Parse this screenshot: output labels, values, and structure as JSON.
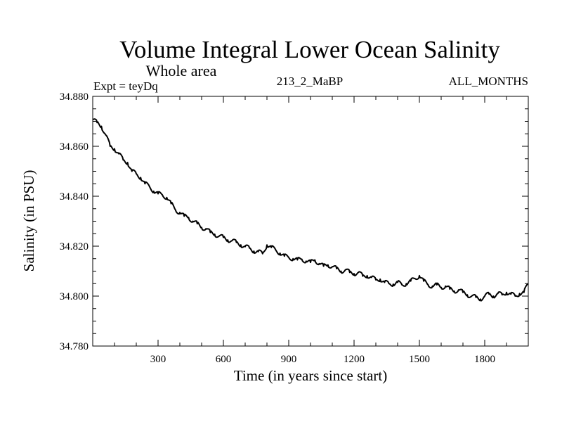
{
  "chart_data": {
    "type": "line",
    "title": "Volume Integral Lower Ocean Salinity",
    "subtitle": "Whole area",
    "annotations": {
      "left": "Expt = teyDq",
      "center": "213_2_MaBP",
      "right": "ALL_MONTHS"
    },
    "xlabel": "Time (in years since start)",
    "ylabel": "Salinity (in PSU)",
    "xlim": [
      0,
      2000
    ],
    "ylim": [
      34.78,
      34.88
    ],
    "x_major_ticks": [
      300,
      600,
      900,
      1200,
      1500,
      1800
    ],
    "x_tick_labels": [
      "300",
      "600",
      "900",
      "1200",
      "1500",
      "1800"
    ],
    "x_minor_step": 100,
    "y_major_ticks": [
      34.78,
      34.8,
      34.82,
      34.84,
      34.86,
      34.88
    ],
    "y_tick_labels": [
      "34.780",
      "34.800",
      "34.820",
      "34.840",
      "34.860",
      "34.880"
    ],
    "y_minor_step": 0.005,
    "grid": false,
    "legend": "none",
    "series": [
      {
        "name": "Salinity",
        "color": "#000000",
        "x": [
          0,
          20,
          40,
          60,
          80,
          100,
          120,
          140,
          160,
          180,
          200,
          220,
          240,
          260,
          280,
          300,
          320,
          340,
          360,
          380,
          400,
          420,
          440,
          460,
          480,
          500,
          520,
          540,
          560,
          580,
          600,
          620,
          640,
          660,
          680,
          700,
          720,
          740,
          760,
          780,
          800,
          820,
          840,
          860,
          880,
          900,
          920,
          940,
          960,
          980,
          1000,
          1020,
          1040,
          1060,
          1080,
          1100,
          1120,
          1140,
          1160,
          1180,
          1200,
          1220,
          1240,
          1260,
          1280,
          1300,
          1320,
          1340,
          1360,
          1380,
          1400,
          1420,
          1440,
          1460,
          1480,
          1500,
          1520,
          1540,
          1560,
          1580,
          1600,
          1620,
          1640,
          1660,
          1680,
          1700,
          1720,
          1740,
          1760,
          1780,
          1800,
          1820,
          1840,
          1860,
          1880,
          1900,
          1920,
          1940,
          1960,
          1980,
          2000
        ],
        "values": [
          34.8707,
          34.8695,
          34.868,
          34.8645,
          34.86,
          34.859,
          34.857,
          34.8545,
          34.8535,
          34.85,
          34.849,
          34.8475,
          34.845,
          34.844,
          34.842,
          34.841,
          34.8405,
          34.8395,
          34.837,
          34.8345,
          34.8335,
          34.832,
          34.8315,
          34.83,
          34.829,
          34.8275,
          34.827,
          34.8255,
          34.8248,
          34.824,
          34.8235,
          34.8225,
          34.8222,
          34.8215,
          34.8205,
          34.8198,
          34.8192,
          34.818,
          34.8178,
          34.817,
          34.8205,
          34.8195,
          34.8185,
          34.8172,
          34.816,
          34.8155,
          34.815,
          34.8145,
          34.8148,
          34.814,
          34.8135,
          34.8145,
          34.813,
          34.812,
          34.8125,
          34.8118,
          34.811,
          34.81,
          34.8105,
          34.8095,
          34.809,
          34.8095,
          34.808,
          34.8082,
          34.8075,
          34.8065,
          34.8068,
          34.8055,
          34.805,
          34.8048,
          34.8055,
          34.8045,
          34.805,
          34.806,
          34.807,
          34.8082,
          34.806,
          34.8045,
          34.804,
          34.8045,
          34.8035,
          34.804,
          34.8028,
          34.802,
          34.8025,
          34.8015,
          34.8005,
          34.8,
          34.7995,
          34.7988,
          34.8,
          34.8008,
          34.8,
          34.801,
          34.8005,
          34.8015,
          34.8008,
          34.8,
          34.801,
          34.8015,
          34.805
        ]
      }
    ]
  }
}
